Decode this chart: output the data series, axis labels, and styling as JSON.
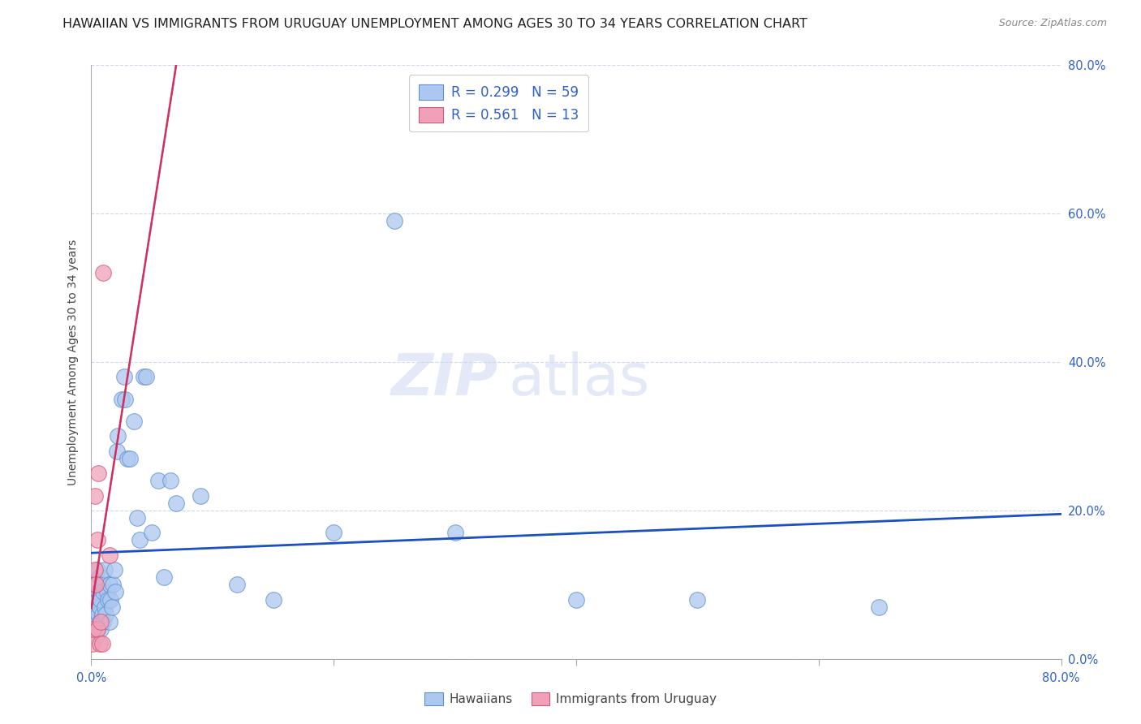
{
  "title": "HAWAIIAN VS IMMIGRANTS FROM URUGUAY UNEMPLOYMENT AMONG AGES 30 TO 34 YEARS CORRELATION CHART",
  "source": "Source: ZipAtlas.com",
  "ylabel": "Unemployment Among Ages 30 to 34 years",
  "legend_r1": "R = 0.299",
  "legend_n1": "N = 59",
  "legend_r2": "R = 0.561",
  "legend_n2": "N = 13",
  "hawaiian_color": "#adc8f0",
  "hawaii_edge_color": "#6090d0",
  "uruguay_color": "#f0a0b8",
  "uruguay_edge_color": "#d05878",
  "reg_line_color_hawaii": "#1a50c0",
  "reg_line_color_uruguay": "#d03060",
  "watermark_zip": "ZIP",
  "watermark_atlas": "atlas",
  "hawaiian_x": [
    0.001,
    0.002,
    0.002,
    0.003,
    0.003,
    0.004,
    0.004,
    0.005,
    0.005,
    0.005,
    0.006,
    0.006,
    0.007,
    0.007,
    0.007,
    0.008,
    0.008,
    0.009,
    0.009,
    0.01,
    0.01,
    0.011,
    0.011,
    0.012,
    0.013,
    0.014,
    0.015,
    0.015,
    0.016,
    0.017,
    0.018,
    0.019,
    0.02,
    0.021,
    0.022,
    0.025,
    0.027,
    0.028,
    0.03,
    0.032,
    0.035,
    0.038,
    0.04,
    0.043,
    0.045,
    0.05,
    0.055,
    0.06,
    0.065,
    0.07,
    0.09,
    0.12,
    0.15,
    0.2,
    0.25,
    0.3,
    0.4,
    0.5,
    0.65
  ],
  "hawaiian_y": [
    0.04,
    0.06,
    0.08,
    0.05,
    0.1,
    0.03,
    0.07,
    0.04,
    0.08,
    0.12,
    0.06,
    0.09,
    0.05,
    0.07,
    0.11,
    0.04,
    0.08,
    0.06,
    0.1,
    0.05,
    0.09,
    0.07,
    0.12,
    0.06,
    0.09,
    0.08,
    0.05,
    0.1,
    0.08,
    0.07,
    0.1,
    0.12,
    0.09,
    0.28,
    0.3,
    0.35,
    0.38,
    0.35,
    0.27,
    0.27,
    0.32,
    0.19,
    0.16,
    0.38,
    0.38,
    0.17,
    0.24,
    0.11,
    0.24,
    0.21,
    0.22,
    0.1,
    0.08,
    0.17,
    0.59,
    0.17,
    0.08,
    0.08,
    0.07
  ],
  "uruguay_x": [
    0.001,
    0.002,
    0.003,
    0.003,
    0.004,
    0.005,
    0.005,
    0.006,
    0.007,
    0.008,
    0.009,
    0.01,
    0.015
  ],
  "uruguay_y": [
    0.02,
    0.04,
    0.12,
    0.22,
    0.1,
    0.16,
    0.04,
    0.25,
    0.02,
    0.05,
    0.02,
    0.52,
    0.14
  ],
  "xlim": [
    0.0,
    0.8
  ],
  "ylim": [
    0.0,
    0.8
  ],
  "background_color": "#ffffff",
  "plot_bg_color": "#ffffff",
  "grid_color": "#c8d4e8",
  "title_fontsize": 11.5,
  "axis_label_fontsize": 10,
  "tick_fontsize": 10.5,
  "source_fontsize": 9,
  "watermark_fontsize_zip": 52,
  "watermark_fontsize_atlas": 52,
  "watermark_color": "#ccd8f0",
  "watermark_alpha": 0.55
}
